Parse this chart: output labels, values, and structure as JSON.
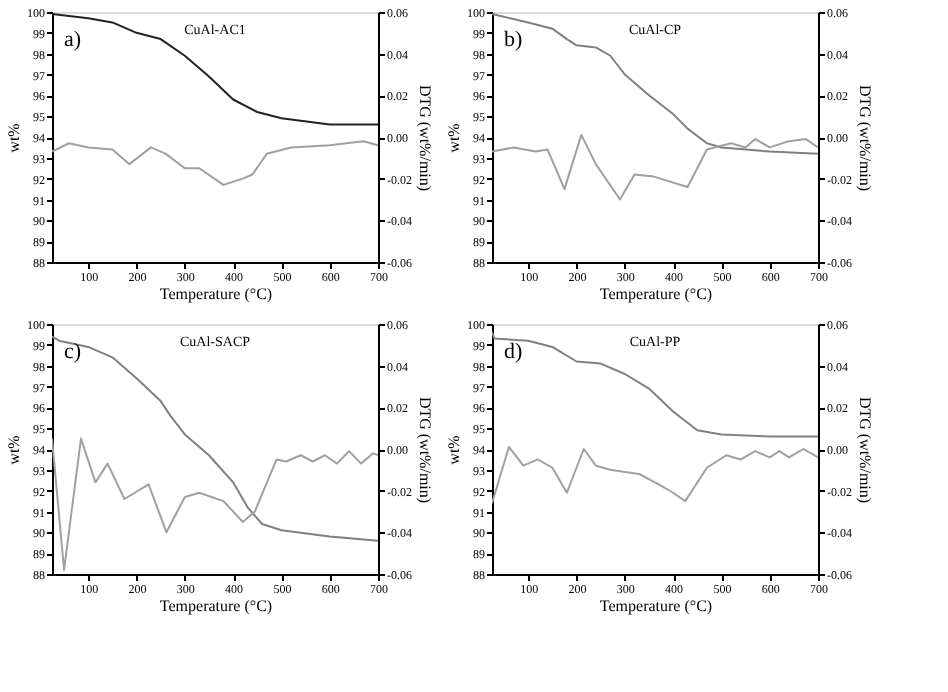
{
  "chart_data": [
    {
      "type": "line",
      "xlabel": "Temperature (°C)",
      "ylabel": "wt%",
      "y2label": "DTG (wt%/min)",
      "annotations": [
        "a)",
        "CuAl-AC1"
      ],
      "grid": false,
      "xlim": [
        25,
        700
      ],
      "xticks": [
        100,
        200,
        300,
        400,
        500,
        600,
        700
      ],
      "ylim": [
        88,
        100
      ],
      "yticks": [
        88,
        89,
        90,
        91,
        92,
        93,
        94,
        95,
        96,
        97,
        98,
        99,
        100
      ],
      "y2lim": [
        -0.06,
        0.06
      ],
      "y2ticks": [
        {
          "value": -0.06,
          "label": "-0.06"
        },
        {
          "value": -0.04,
          "label": "-0.04"
        },
        {
          "value": -0.02,
          "label": "-0.02"
        },
        {
          "value": 0,
          "label": "0.00"
        },
        {
          "value": 0.02,
          "label": "0.02"
        },
        {
          "value": 0.04,
          "label": "0.04"
        },
        {
          "value": 0.06,
          "label": "0.06"
        }
      ],
      "series": [
        {
          "color": "#222222",
          "x": [
            25,
            100,
            150,
            200,
            250,
            300,
            350,
            400,
            450,
            500,
            600,
            700
          ],
          "values": [
            99.9,
            99.7,
            99.5,
            99.0,
            98.7,
            97.9,
            96.9,
            95.8,
            95.2,
            94.9,
            94.6,
            94.6
          ]
        },
        {
          "color": "#a0a0a0",
          "axis": "y2",
          "x": [
            25,
            60,
            100,
            150,
            185,
            230,
            260,
            300,
            330,
            380,
            420,
            440,
            470,
            520,
            600,
            670,
            700
          ],
          "values": [
            -0.007,
            -0.003,
            -0.005,
            -0.006,
            -0.013,
            -0.005,
            -0.008,
            -0.015,
            -0.015,
            -0.023,
            -0.02,
            -0.018,
            -0.008,
            -0.005,
            -0.004,
            -0.002,
            -0.004
          ]
        }
      ]
    },
    {
      "type": "line",
      "xlabel": "Temperature (°C)",
      "ylabel": "wt%",
      "y2label": "DTG (wt%/min)",
      "annotations": [
        "b)",
        "CuAl-CP"
      ],
      "grid": false,
      "xlim": [
        25,
        700
      ],
      "xticks": [
        100,
        200,
        300,
        400,
        500,
        600,
        700
      ],
      "ylim": [
        88,
        100
      ],
      "yticks": [
        88,
        89,
        90,
        91,
        92,
        93,
        94,
        95,
        96,
        97,
        98,
        99,
        100
      ],
      "y2lim": [
        -0.06,
        0.06
      ],
      "y2ticks": [
        {
          "value": -0.06,
          "label": "-0.06"
        },
        {
          "value": -0.04,
          "label": "-0.04"
        },
        {
          "value": -0.02,
          "label": "-0.02"
        },
        {
          "value": 0,
          "label": "0.00"
        },
        {
          "value": 0.02,
          "label": "0.02"
        },
        {
          "value": 0.04,
          "label": "0.04"
        },
        {
          "value": 0.06,
          "label": "0.06"
        }
      ],
      "series": [
        {
          "color": "#808080",
          "x": [
            25,
            100,
            150,
            180,
            200,
            240,
            270,
            300,
            350,
            400,
            430,
            470,
            500,
            600,
            700
          ],
          "values": [
            99.9,
            99.5,
            99.2,
            98.7,
            98.4,
            98.3,
            97.9,
            97.0,
            96.0,
            95.1,
            94.4,
            93.7,
            93.5,
            93.3,
            93.2
          ]
        },
        {
          "color": "#a0a0a0",
          "axis": "y2",
          "x": [
            25,
            70,
            115,
            140,
            175,
            210,
            240,
            290,
            320,
            360,
            430,
            470,
            520,
            550,
            570,
            600,
            640,
            675,
            700
          ],
          "values": [
            -0.007,
            -0.005,
            -0.007,
            -0.006,
            -0.025,
            0.001,
            -0.013,
            -0.03,
            -0.018,
            -0.019,
            -0.024,
            -0.006,
            -0.003,
            -0.005,
            -0.001,
            -0.005,
            -0.002,
            -0.001,
            -0.005
          ]
        }
      ]
    },
    {
      "type": "line",
      "xlabel": "Temperature (°C)",
      "ylabel": "wt%",
      "y2label": "DTG (wt%/min)",
      "annotations": [
        "c)",
        "CuAl-SACP"
      ],
      "grid": false,
      "xlim": [
        25,
        700
      ],
      "xticks": [
        100,
        200,
        300,
        400,
        500,
        600,
        700
      ],
      "ylim": [
        88,
        100
      ],
      "yticks": [
        88,
        89,
        90,
        91,
        92,
        93,
        94,
        95,
        96,
        97,
        98,
        99,
        100
      ],
      "y2lim": [
        -0.06,
        0.06
      ],
      "y2ticks": [
        {
          "value": -0.06,
          "label": "-0.06"
        },
        {
          "value": -0.04,
          "label": "-0.04"
        },
        {
          "value": -0.02,
          "label": "-0.02"
        },
        {
          "value": 0,
          "label": "0.00"
        },
        {
          "value": 0.02,
          "label": "0.02"
        },
        {
          "value": 0.04,
          "label": "0.04"
        },
        {
          "value": 0.06,
          "label": "0.06"
        }
      ],
      "series": [
        {
          "color": "#808080",
          "x": [
            25,
            40,
            100,
            150,
            200,
            250,
            270,
            300,
            350,
            400,
            430,
            460,
            500,
            600,
            700
          ],
          "values": [
            99.4,
            99.2,
            98.9,
            98.4,
            97.4,
            96.3,
            95.6,
            94.7,
            93.7,
            92.4,
            91.2,
            90.4,
            90.1,
            89.8,
            89.6
          ]
        },
        {
          "color": "#a0a0a0",
          "axis": "y2",
          "x": [
            25,
            50,
            85,
            115,
            140,
            175,
            225,
            262,
            300,
            330,
            380,
            420,
            445,
            490,
            510,
            540,
            565,
            590,
            615,
            640,
            665,
            690,
            700
          ],
          "values": [
            0.005,
            -0.058,
            0.005,
            -0.016,
            -0.007,
            -0.024,
            -0.017,
            -0.04,
            -0.023,
            -0.021,
            -0.025,
            -0.035,
            -0.03,
            -0.005,
            -0.006,
            -0.003,
            -0.006,
            -0.003,
            -0.007,
            -0.001,
            -0.007,
            -0.002,
            -0.003
          ]
        }
      ]
    },
    {
      "type": "line",
      "xlabel": "Temperature (°C)",
      "ylabel": "wt%",
      "y2label": "DTG (wt%/min)",
      "annotations": [
        "d)",
        "CuAl-PP"
      ],
      "grid": false,
      "xlim": [
        25,
        700
      ],
      "xticks": [
        100,
        200,
        300,
        400,
        500,
        600,
        700
      ],
      "ylim": [
        88,
        100
      ],
      "yticks": [
        88,
        89,
        90,
        91,
        92,
        93,
        94,
        95,
        96,
        97,
        98,
        99,
        100
      ],
      "y2lim": [
        -0.06,
        0.06
      ],
      "y2ticks": [
        {
          "value": -0.06,
          "label": "-0.06"
        },
        {
          "value": -0.04,
          "label": "-0.04"
        },
        {
          "value": -0.02,
          "label": "-0.02"
        },
        {
          "value": 0,
          "label": "0.00"
        },
        {
          "value": 0.02,
          "label": "0.02"
        },
        {
          "value": 0.04,
          "label": "0.04"
        },
        {
          "value": 0.06,
          "label": "0.06"
        }
      ],
      "series": [
        {
          "color": "#808080",
          "x": [
            25,
            30,
            100,
            150,
            200,
            250,
            300,
            350,
            400,
            450,
            500,
            600,
            700
          ],
          "values": [
            99.6,
            99.3,
            99.2,
            98.9,
            98.2,
            98.1,
            97.6,
            96.9,
            95.8,
            94.9,
            94.7,
            94.6,
            94.6
          ]
        },
        {
          "color": "#a0a0a0",
          "axis": "y2",
          "x": [
            25,
            60,
            90,
            120,
            150,
            180,
            215,
            240,
            270,
            300,
            330,
            370,
            400,
            425,
            470,
            510,
            540,
            570,
            600,
            620,
            640,
            670,
            700
          ],
          "values": [
            -0.026,
            0.001,
            -0.008,
            -0.005,
            -0.009,
            -0.021,
            0.0,
            -0.008,
            -0.01,
            -0.011,
            -0.012,
            -0.017,
            -0.021,
            -0.025,
            -0.009,
            -0.003,
            -0.005,
            -0.001,
            -0.004,
            -0.001,
            -0.004,
            0.0,
            -0.004
          ]
        }
      ]
    }
  ]
}
